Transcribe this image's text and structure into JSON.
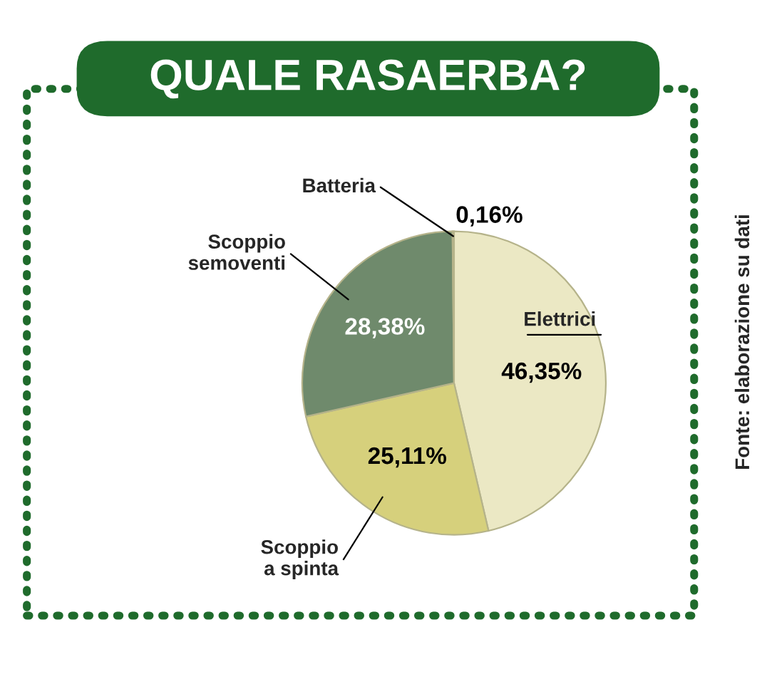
{
  "chart_data": {
    "type": "pie",
    "title": "QUALE RASAERBA?",
    "categories": [
      "Elettrici",
      "Scoppio\na spinta",
      "Scoppio\nsemoventi",
      "Batteria"
    ],
    "values": [
      46.35,
      25.11,
      28.38,
      0.16
    ],
    "value_labels": [
      "46,35%",
      "25,11%",
      "28,38%",
      "0,16%"
    ],
    "colors": [
      "#ebe8c4",
      "#d6d07c",
      "#6f8a6c",
      "#4f6b50"
    ],
    "annotations": [
      "Fonte: elaborazione su dati"
    ]
  }
}
